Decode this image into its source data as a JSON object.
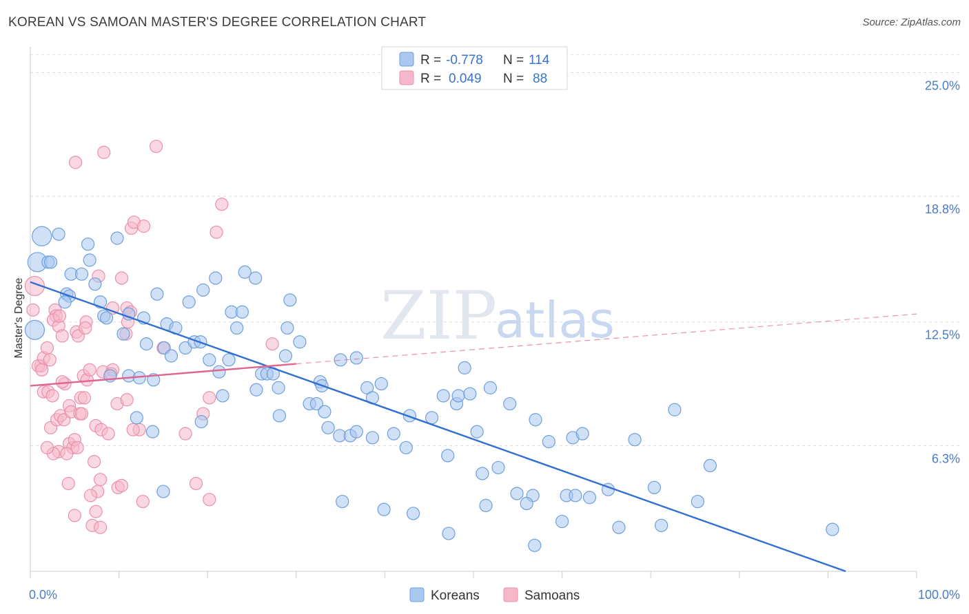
{
  "header": {
    "title": "KOREAN VS SAMOAN MASTER'S DEGREE CORRELATION CHART",
    "source": "Source: ZipAtlas.com"
  },
  "watermark": {
    "zip": "ZIP",
    "atlas": "atlas"
  },
  "legend_box": {
    "rows": [
      {
        "r_label": "R =",
        "r_value": "-0.778",
        "n_label": "N =",
        "n_value": "114",
        "color": "#a9c7ef"
      },
      {
        "r_label": "R =",
        "r_value": "0.049",
        "n_label": "N =",
        "n_value": "88",
        "color": "#f5b8cb"
      }
    ]
  },
  "bottom_legend": [
    {
      "label": "Koreans",
      "color": "#a9c7ef"
    },
    {
      "label": "Samoans",
      "color": "#f5b8cb"
    }
  ],
  "chart_data": {
    "type": "scatter",
    "ylabel": "Master's Degree",
    "xlim": [
      0,
      100
    ],
    "ylim": [
      0,
      26.5
    ],
    "y_ticks": [
      {
        "value": 6.3,
        "label": "6.3%"
      },
      {
        "value": 12.5,
        "label": "12.5%"
      },
      {
        "value": 18.8,
        "label": "18.8%"
      },
      {
        "value": 25.0,
        "label": "25.0%"
      }
    ],
    "x_tick_labels": [
      {
        "value": 0,
        "label": "0.0%"
      },
      {
        "value": 100,
        "label": "100.0%"
      }
    ],
    "grid": "horizontal dashed",
    "series": [
      {
        "name": "Koreans",
        "color": "#a9c7ef",
        "stroke": "#6f9fdc",
        "trend": {
          "x0": 0,
          "y0": 14.5,
          "x1": 92,
          "y1": 0.0,
          "color": "#2f6fd0",
          "dashed_extension": false
        },
        "points": [
          [
            1.3,
            16.8
          ],
          [
            0.8,
            15.5
          ],
          [
            2.0,
            15.5
          ],
          [
            2.3,
            15.5
          ],
          [
            0.5,
            12.1
          ],
          [
            3.2,
            16.9
          ],
          [
            6.5,
            16.4
          ],
          [
            6.7,
            15.6
          ],
          [
            9.8,
            16.7
          ],
          [
            4.6,
            14.9
          ],
          [
            5.8,
            14.9
          ],
          [
            7.3,
            14.4
          ],
          [
            4.1,
            13.9
          ],
          [
            4.4,
            13.8
          ],
          [
            3.9,
            13.5
          ],
          [
            7.9,
            13.5
          ],
          [
            8.3,
            12.8
          ],
          [
            8.6,
            12.7
          ],
          [
            11.1,
            12.9
          ],
          [
            12.8,
            12.7
          ],
          [
            14.3,
            13.9
          ],
          [
            15.4,
            12.4
          ],
          [
            16.4,
            12.2
          ],
          [
            17.9,
            13.5
          ],
          [
            19.5,
            14.1
          ],
          [
            20.9,
            14.7
          ],
          [
            22.7,
            13.0
          ],
          [
            23.9,
            13.0
          ],
          [
            24.2,
            15.0
          ],
          [
            25.4,
            14.7
          ],
          [
            23.3,
            12.2
          ],
          [
            29.3,
            13.6
          ],
          [
            29.0,
            12.2
          ],
          [
            30.4,
            11.5
          ],
          [
            10.5,
            11.9
          ],
          [
            13.1,
            11.4
          ],
          [
            15.1,
            11.2
          ],
          [
            15.9,
            10.8
          ],
          [
            17.5,
            11.2
          ],
          [
            18.5,
            11.5
          ],
          [
            19.2,
            11.5
          ],
          [
            20.2,
            10.6
          ],
          [
            21.3,
            10.0
          ],
          [
            22.4,
            10.6
          ],
          [
            26.1,
            9.9
          ],
          [
            26.7,
            9.9
          ],
          [
            27.4,
            9.9
          ],
          [
            28.0,
            9.2
          ],
          [
            28.8,
            10.8
          ],
          [
            31.5,
            8.4
          ],
          [
            32.3,
            8.4
          ],
          [
            32.7,
            9.5
          ],
          [
            32.9,
            9.3
          ],
          [
            35.0,
            10.6
          ],
          [
            36.8,
            10.7
          ],
          [
            38.0,
            9.2
          ],
          [
            38.6,
            8.7
          ],
          [
            39.6,
            9.4
          ],
          [
            11.1,
            9.8
          ],
          [
            12.3,
            9.7
          ],
          [
            13.9,
            9.6
          ],
          [
            21.7,
            8.8
          ],
          [
            25.5,
            9.1
          ],
          [
            9.0,
            9.8
          ],
          [
            12.0,
            7.7
          ],
          [
            19.3,
            7.5
          ],
          [
            28.1,
            7.8
          ],
          [
            33.2,
            8.0
          ],
          [
            33.6,
            7.2
          ],
          [
            34.9,
            6.8
          ],
          [
            36.1,
            6.8
          ],
          [
            36.8,
            7.0
          ],
          [
            38.6,
            6.7
          ],
          [
            41.0,
            6.9
          ],
          [
            42.4,
            6.2
          ],
          [
            42.8,
            7.8
          ],
          [
            45.3,
            7.7
          ],
          [
            47.1,
            5.8
          ],
          [
            48.1,
            8.4
          ],
          [
            48.3,
            8.8
          ],
          [
            49.0,
            10.2
          ],
          [
            49.6,
            8.9
          ],
          [
            50.4,
            7.0
          ],
          [
            51.9,
            9.2
          ],
          [
            54.1,
            8.4
          ],
          [
            54.9,
            3.9
          ],
          [
            56.7,
            3.8
          ],
          [
            57.0,
            7.6
          ],
          [
            58.5,
            6.5
          ],
          [
            60.5,
            3.8
          ],
          [
            60.0,
            2.5
          ],
          [
            61.2,
            6.7
          ],
          [
            61.5,
            3.8
          ],
          [
            62.3,
            6.9
          ],
          [
            65.2,
            4.1
          ],
          [
            66.4,
            2.2
          ],
          [
            70.4,
            4.2
          ],
          [
            71.2,
            2.3
          ],
          [
            72.7,
            8.1
          ],
          [
            75.3,
            3.5
          ],
          [
            76.7,
            5.3
          ],
          [
            90.5,
            2.1
          ],
          [
            13.8,
            7.0
          ],
          [
            15.0,
            4.0
          ],
          [
            35.2,
            3.5
          ],
          [
            39.9,
            3.1
          ],
          [
            43.2,
            2.9
          ],
          [
            47.2,
            1.9
          ],
          [
            51.4,
            3.3
          ],
          [
            51.0,
            4.9
          ],
          [
            52.8,
            5.2
          ],
          [
            56.0,
            3.4
          ],
          [
            56.9,
            1.3
          ],
          [
            68.2,
            6.6
          ],
          [
            63.1,
            3.7
          ],
          [
            46.6,
            8.8
          ]
        ],
        "sizes": {
          "large": [
            [
              1.3,
              16.8
            ],
            [
              0.8,
              15.5
            ],
            [
              0.5,
              12.1
            ]
          ]
        }
      },
      {
        "name": "Samoans",
        "color": "#f5b8cb",
        "stroke": "#e990ab",
        "trend": {
          "x0": 0,
          "y0": 9.3,
          "x1": 30,
          "y1": 10.4,
          "color": "#e0648f",
          "dashed_extension": {
            "x1": 100,
            "y1": 12.9
          }
        },
        "points": [
          [
            0.5,
            14.3
          ],
          [
            0.3,
            13.1
          ],
          [
            1.2,
            10.3
          ],
          [
            0.9,
            10.3
          ],
          [
            1.3,
            10.1
          ],
          [
            1.5,
            10.7
          ],
          [
            1.9,
            11.2
          ],
          [
            2.2,
            10.6
          ],
          [
            2.8,
            13.1
          ],
          [
            2.9,
            12.8
          ],
          [
            2.6,
            12.6
          ],
          [
            3.2,
            12.3
          ],
          [
            3.3,
            12.8
          ],
          [
            3.6,
            11.8
          ],
          [
            1.5,
            9.0
          ],
          [
            2.0,
            9.0
          ],
          [
            2.5,
            8.8
          ],
          [
            2.3,
            7.2
          ],
          [
            3.0,
            7.6
          ],
          [
            3.4,
            7.8
          ],
          [
            3.8,
            7.6
          ],
          [
            3.9,
            9.4
          ],
          [
            3.6,
            9.5
          ],
          [
            4.4,
            8.3
          ],
          [
            4.6,
            8.0
          ],
          [
            5.2,
            12.0
          ],
          [
            5.4,
            11.8
          ],
          [
            6.3,
            12.5
          ],
          [
            6.2,
            12.2
          ],
          [
            6.0,
            9.8
          ],
          [
            6.4,
            9.6
          ],
          [
            6.7,
            10.1
          ],
          [
            5.7,
            8.7
          ],
          [
            6.1,
            8.7
          ],
          [
            5.6,
            7.9
          ],
          [
            5.8,
            7.9
          ],
          [
            7.4,
            7.3
          ],
          [
            8.0,
            7.1
          ],
          [
            8.8,
            6.9
          ],
          [
            9.8,
            8.4
          ],
          [
            10.9,
            8.6
          ],
          [
            12.3,
            7.1
          ],
          [
            11.6,
            7.1
          ],
          [
            4.4,
            6.4
          ],
          [
            4.8,
            6.2
          ],
          [
            3.2,
            6.0
          ],
          [
            2.6,
            5.9
          ],
          [
            1.9,
            6.2
          ],
          [
            4.1,
            5.9
          ],
          [
            5.0,
            6.6
          ],
          [
            5.3,
            6.2
          ],
          [
            7.2,
            5.5
          ],
          [
            7.9,
            4.6
          ],
          [
            7.6,
            4.0
          ],
          [
            6.8,
            3.8
          ],
          [
            9.9,
            4.2
          ],
          [
            10.3,
            4.3
          ],
          [
            12.7,
            3.5
          ],
          [
            7.4,
            3.0
          ],
          [
            5.0,
            2.8
          ],
          [
            7.0,
            2.3
          ],
          [
            7.9,
            2.2
          ],
          [
            4.3,
            4.4
          ],
          [
            8.2,
            10.0
          ],
          [
            9.3,
            10.1
          ],
          [
            9.1,
            9.9
          ],
          [
            10.9,
            13.2
          ],
          [
            11.3,
            13.0
          ],
          [
            10.8,
            11.9
          ],
          [
            11.0,
            12.5
          ],
          [
            7.7,
            14.8
          ],
          [
            10.3,
            14.7
          ],
          [
            15.0,
            11.2
          ],
          [
            11.4,
            17.2
          ],
          [
            11.7,
            17.5
          ],
          [
            12.8,
            17.3
          ],
          [
            14.2,
            21.3
          ],
          [
            8.3,
            21.0
          ],
          [
            5.1,
            20.5
          ],
          [
            21.6,
            18.4
          ],
          [
            21.0,
            17.0
          ],
          [
            20.2,
            8.7
          ],
          [
            19.5,
            7.9
          ],
          [
            17.5,
            6.9
          ],
          [
            18.7,
            4.4
          ],
          [
            20.2,
            3.6
          ],
          [
            27.3,
            11.4
          ],
          [
            9.3,
            13.2
          ]
        ],
        "sizes": {
          "large": [
            [
              0.5,
              14.3
            ]
          ]
        }
      }
    ]
  }
}
